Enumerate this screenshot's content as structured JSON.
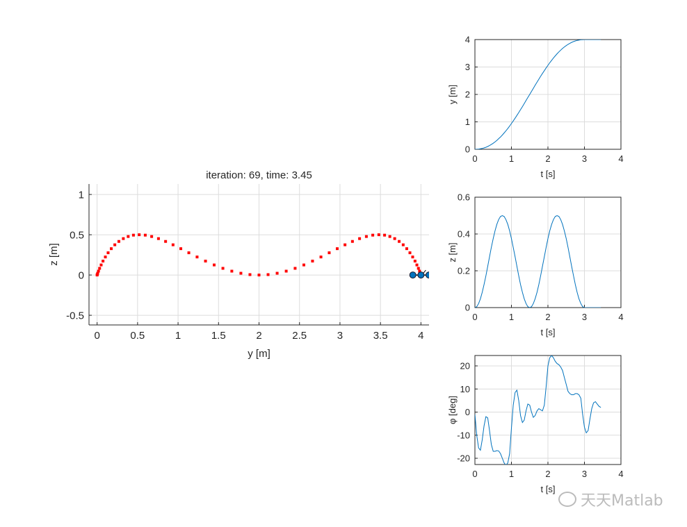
{
  "colors": {
    "trajectory": "#ff0000",
    "line": "#0072bd",
    "quad_face": "#0072bd",
    "grid": "#dcdcdc",
    "axis": "#262626"
  },
  "watermark": {
    "icon": "wechat-icon",
    "text": "天天Matlab"
  },
  "chart_data": [
    {
      "type": "scatter",
      "title": "iteration: 69, time: 3.45",
      "xlabel": "y [m]",
      "ylabel": "z [m]",
      "xlim": [
        -0.1,
        4.1
      ],
      "ylim": [
        -0.62,
        1.13
      ],
      "xticks": [
        "0",
        "0.5",
        "1",
        "1.5",
        "2",
        "2.5",
        "3",
        "3.5",
        "4"
      ],
      "yticks": [
        "-0.5",
        "0",
        "0.5",
        "1"
      ],
      "grid": true,
      "trajectory": {
        "y": [
          0,
          0.002,
          0.007,
          0.017,
          0.031,
          0.05,
          0.073,
          0.102,
          0.136,
          0.175,
          0.219,
          0.269,
          0.324,
          0.384,
          0.449,
          0.52,
          0.595,
          0.674,
          0.758,
          0.846,
          0.938,
          1.034,
          1.133,
          1.235,
          1.339,
          1.446,
          1.554,
          1.664,
          1.776,
          1.888,
          2.0,
          2.112,
          2.224,
          2.336,
          2.446,
          2.554,
          2.661,
          2.765,
          2.867,
          2.966,
          3.062,
          3.154,
          3.242,
          3.326,
          3.405,
          3.48,
          3.551,
          3.616,
          3.676,
          3.731,
          3.781,
          3.825,
          3.864,
          3.898,
          3.927,
          3.95,
          3.969,
          3.983,
          3.993,
          3.998,
          4.0,
          4,
          4,
          4,
          4,
          4,
          4,
          4,
          4,
          4
        ],
        "z": [
          0,
          0.005,
          0.022,
          0.048,
          0.083,
          0.125,
          0.173,
          0.224,
          0.276,
          0.327,
          0.375,
          0.417,
          0.452,
          0.478,
          0.495,
          0.5,
          0.495,
          0.478,
          0.452,
          0.417,
          0.375,
          0.327,
          0.276,
          0.224,
          0.173,
          0.125,
          0.083,
          0.048,
          0.022,
          0.005,
          0,
          0.005,
          0.022,
          0.048,
          0.083,
          0.125,
          0.173,
          0.224,
          0.276,
          0.327,
          0.375,
          0.417,
          0.452,
          0.478,
          0.495,
          0.5,
          0.495,
          0.478,
          0.452,
          0.417,
          0.375,
          0.327,
          0.276,
          0.224,
          0.173,
          0.125,
          0.083,
          0.048,
          0.022,
          0.005,
          0,
          0,
          0,
          0,
          0,
          0,
          0,
          0,
          0,
          0
        ]
      },
      "quadrotor": {
        "y": [
          3.9,
          4.0,
          4.1
        ],
        "z": [
          0,
          0,
          0
        ]
      }
    },
    {
      "type": "line",
      "xlabel": "t [s]",
      "ylabel": "y [m]",
      "xlim": [
        0,
        4
      ],
      "ylim": [
        0,
        4
      ],
      "xticks": [
        "0",
        "1",
        "2",
        "3",
        "4"
      ],
      "yticks": [
        "0",
        "1",
        "2",
        "3",
        "4"
      ],
      "grid": true,
      "series_ref": "y"
    },
    {
      "type": "line",
      "xlabel": "t [s]",
      "ylabel": "z [m]",
      "xlim": [
        0,
        4
      ],
      "ylim": [
        0,
        0.6
      ],
      "xticks": [
        "0",
        "1",
        "2",
        "3",
        "4"
      ],
      "yticks": [
        "0",
        "0.2",
        "0.4",
        "0.6"
      ],
      "grid": true,
      "series_ref": "z"
    },
    {
      "type": "line",
      "xlabel": "t [s]",
      "ylabel": "φ [deg]",
      "xlim": [
        0,
        4
      ],
      "ylim": [
        -22.7,
        24.5
      ],
      "xticks": [
        "0",
        "1",
        "2",
        "3",
        "4"
      ],
      "yticks": [
        "-20",
        "-10",
        "0",
        "10",
        "20"
      ],
      "grid": true,
      "series_ref": "phi"
    }
  ],
  "time_series": {
    "t": [
      0,
      0.05,
      0.1,
      0.15,
      0.2,
      0.25,
      0.3,
      0.35,
      0.4,
      0.45,
      0.5,
      0.55,
      0.6,
      0.65,
      0.7,
      0.75,
      0.8,
      0.85,
      0.9,
      0.95,
      1.0,
      1.05,
      1.1,
      1.15,
      1.2,
      1.25,
      1.3,
      1.35,
      1.4,
      1.45,
      1.5,
      1.55,
      1.6,
      1.65,
      1.7,
      1.75,
      1.8,
      1.85,
      1.9,
      1.95,
      2.0,
      2.05,
      2.1,
      2.15,
      2.2,
      2.25,
      2.3,
      2.35,
      2.4,
      2.45,
      2.5,
      2.55,
      2.6,
      2.65,
      2.7,
      2.75,
      2.8,
      2.85,
      2.9,
      2.95,
      3.0,
      3.05,
      3.1,
      3.15,
      3.2,
      3.25,
      3.3,
      3.35,
      3.4,
      3.45
    ],
    "phi": [
      -1,
      -10,
      -15.5,
      -16.5,
      -12,
      -6,
      -2,
      -2.5,
      -8,
      -14,
      -17,
      -17,
      -16.7,
      -16.8,
      -18,
      -20,
      -22,
      -23,
      -22,
      -18,
      -7,
      3,
      8.5,
      9.5,
      5,
      -1.5,
      -4.5,
      -3.5,
      0.5,
      3.5,
      3,
      0,
      -2.3,
      -1.5,
      0.5,
      1.5,
      1,
      0.5,
      3,
      11,
      20,
      23.5,
      24.5,
      23.5,
      22,
      21,
      20.5,
      19.5,
      18,
      15,
      12,
      9,
      8,
      7.5,
      7.5,
      8,
      8,
      7.5,
      6,
      -1,
      -6.5,
      -9,
      -8,
      -3,
      1.5,
      4,
      4.5,
      3.5,
      2.5,
      2
    ]
  }
}
